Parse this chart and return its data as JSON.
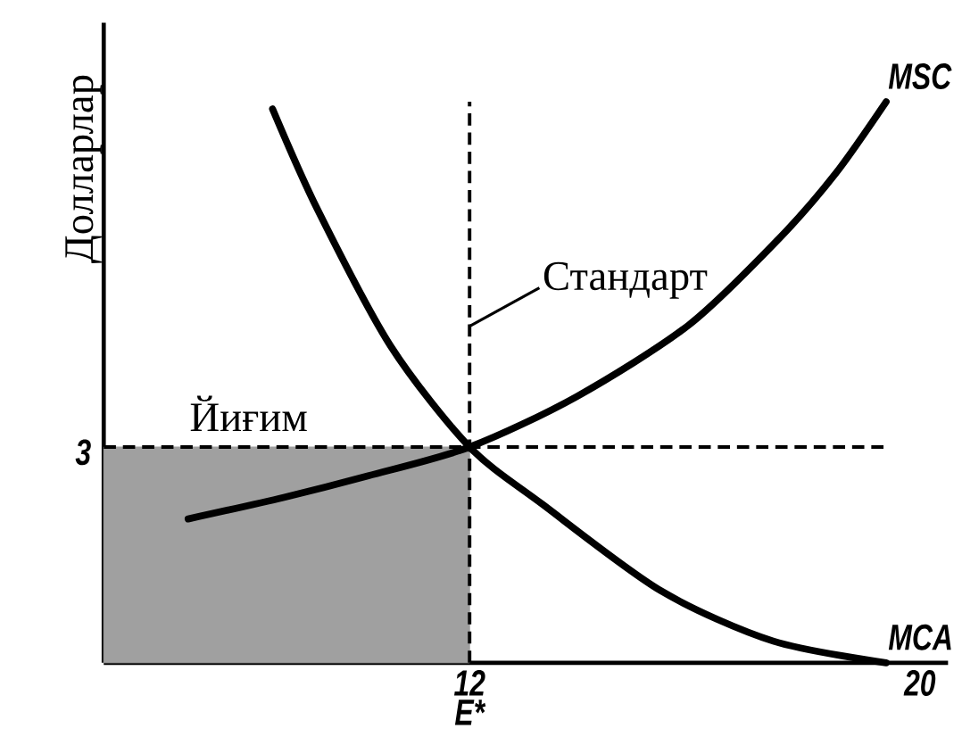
{
  "chart_data": {
    "type": "line",
    "ylabel": "Долларлар",
    "xlim": [
      5.5,
      20.5
    ],
    "ylim": [
      0,
      8.9
    ],
    "xticks": [
      12,
      20
    ],
    "yticks": [
      3
    ],
    "marker": "none",
    "line_style": "solid",
    "series": [
      {
        "name": "Йиғим",
        "type": "area",
        "color": "#a0a0a0",
        "x": [
          5.5,
          12
        ],
        "values": [
          3,
          3
        ]
      },
      {
        "name": "MSC",
        "color": "#000000",
        "x": [
          7.0,
          8.7,
          10.2,
          12,
          13.9,
          15.9,
          17.5,
          18.5,
          19.4
        ],
        "values": [
          2.0,
          2.3,
          2.6,
          3,
          3.7,
          4.7,
          5.9,
          6.8,
          7.8
        ]
      },
      {
        "name": "MCA",
        "color": "#000000",
        "x": [
          8.5,
          9.3,
          10.6,
          12,
          13.3,
          15.4,
          17.4,
          19.4
        ],
        "values": [
          7.7,
          6.3,
          4.4,
          3,
          2.2,
          1.0,
          0.3,
          0
        ]
      }
    ],
    "ref_lines": [
      {
        "axis": "x",
        "value": 12,
        "label": "Стандарт",
        "line_style": "dashed"
      },
      {
        "axis": "y",
        "value": 3,
        "line_style": "dashed"
      }
    ],
    "annotations": [
      {
        "text": "E*",
        "x": 12,
        "y": 0
      }
    ]
  }
}
